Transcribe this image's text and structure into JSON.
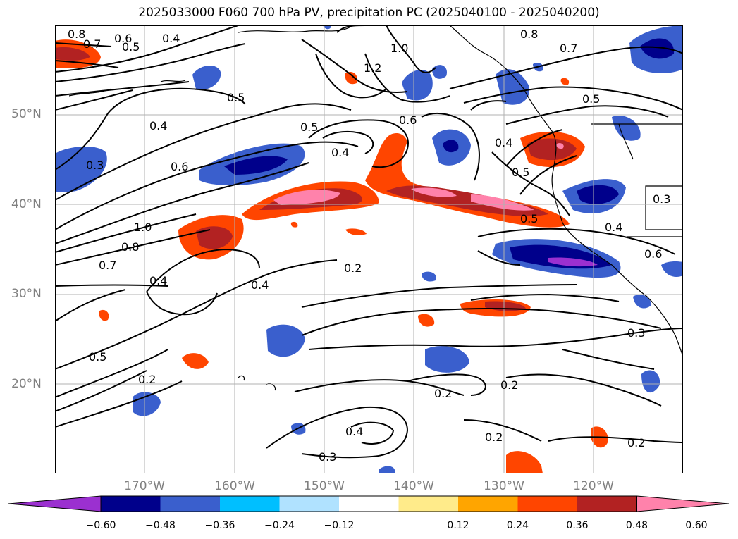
{
  "title": "2025033000 F060 700 hPa PV, precipitation PC (2025040100 - 2025040200)",
  "lat_ticks": [
    "50°N",
    "40°N",
    "30°N",
    "20°N"
  ],
  "lon_ticks": [
    "170°W",
    "160°W",
    "150°W",
    "140°W",
    "130°W",
    "120°W"
  ],
  "colorbar": {
    "ticks": [
      "−0.60",
      "−0.48",
      "−0.36",
      "−0.24",
      "−0.12",
      "0.12",
      "0.24",
      "0.36",
      "0.48",
      "0.60"
    ],
    "colors": [
      "#9b30d0",
      "#00008b",
      "#3a5fcd",
      "#00bfff",
      "#b0e2ff",
      "#ffffff",
      "#ffeb8a",
      "#ffa500",
      "#ff4500",
      "#b22222",
      "#ff82ab"
    ]
  },
  "contour_labels": [
    "0.8",
    "0.7",
    "0.6",
    "0.5",
    "0.4",
    "1.0",
    "1.2",
    "0.8",
    "0.7",
    "0.5",
    "0.5",
    "0.4",
    "0.6",
    "0.3",
    "0.5",
    "0.4",
    "0.6",
    "0.4",
    "0.5",
    "0.5",
    "0.4",
    "0.3",
    "1.0",
    "0.8",
    "0.7",
    "0.4",
    "0.4",
    "0.2",
    "0.6",
    "0.3",
    "0.5",
    "0.2",
    "0.2",
    "0.2",
    "0.4",
    "0.2",
    "0.3",
    "0.2"
  ]
}
